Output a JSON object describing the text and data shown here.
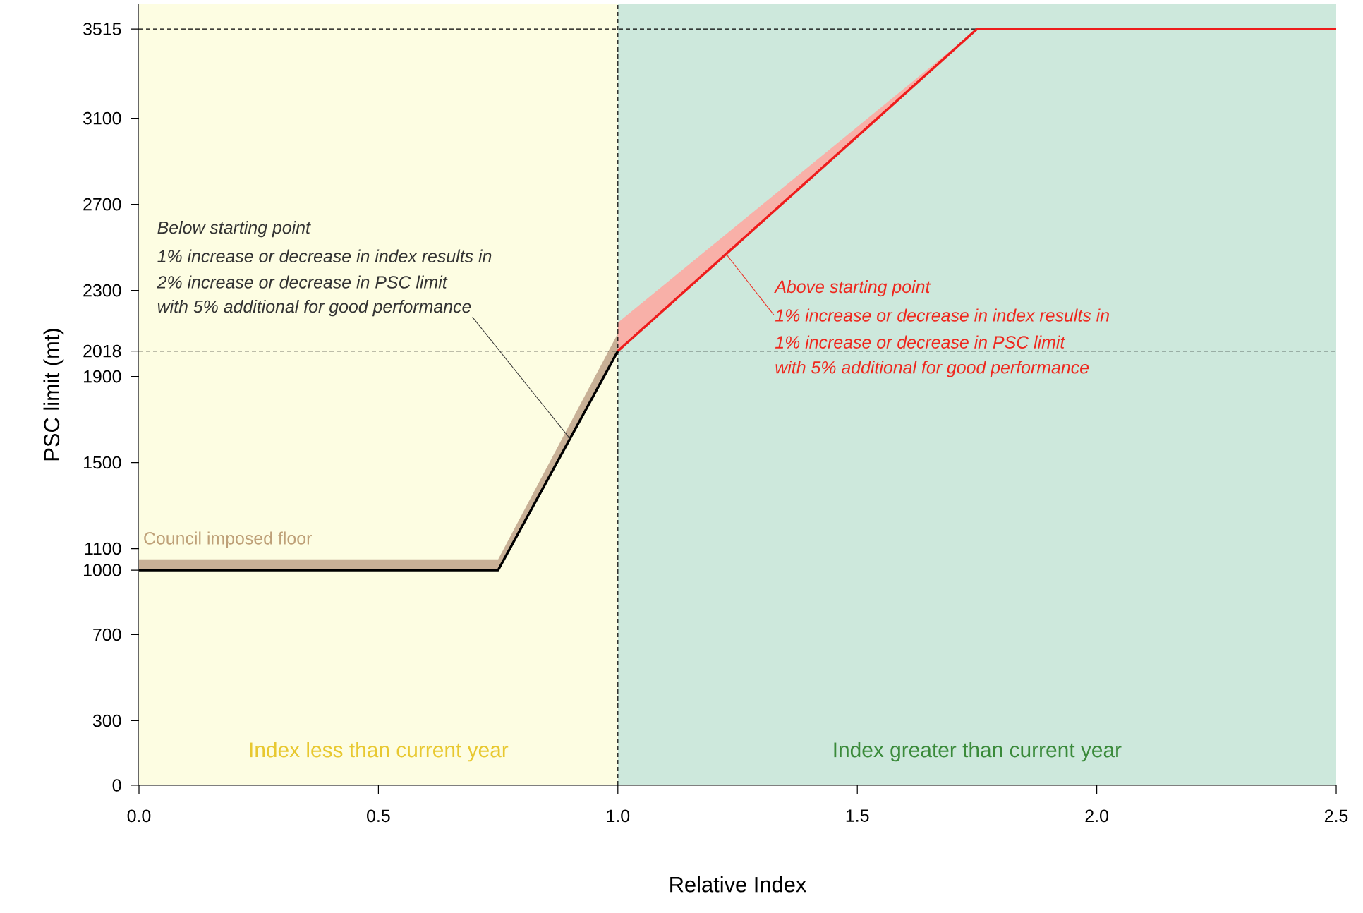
{
  "chart_data": {
    "type": "line",
    "xlabel": "Relative Index",
    "ylabel": "PSC limit (mt)",
    "xlim": [
      0,
      2.5
    ],
    "ylim": [
      0,
      3630
    ],
    "xticks": [
      {
        "value": 0,
        "label": "0.0"
      },
      0.5,
      {
        "value": 1,
        "label": "1.0"
      },
      1.5,
      {
        "value": 2,
        "label": "2.0"
      },
      2.5
    ],
    "yticks": [
      0,
      300,
      700,
      1000,
      1100,
      1500,
      1900,
      2018,
      2300,
      2700,
      3100,
      3515
    ],
    "series": [
      {
        "color": "#000000",
        "x": [
          0,
          0.75,
          1.0
        ],
        "values": [
          1000,
          1000,
          2018
        ],
        "lower": [
          1000,
          1000,
          2018
        ],
        "upper": [
          1050,
          1050,
          2100
        ]
      },
      {
        "color": "#ee1c1c",
        "x": [
          1.0,
          1.75,
          2.5
        ],
        "values": [
          2018,
          3515,
          3515
        ],
        "lower": [
          2018,
          3515,
          3515
        ],
        "upper": [
          2150,
          3515,
          3515
        ]
      }
    ],
    "bands": [
      {
        "axis": "x",
        "from": 0,
        "to": 1.0,
        "label": "Index less than current year",
        "color": "#fdfde2"
      },
      {
        "axis": "x",
        "from": 1.0,
        "to": 2.5,
        "label": "Index greater than current year",
        "color": "#cde8dc"
      }
    ],
    "ref_lines": [
      {
        "axis": "y",
        "value": 3515,
        "line_style": "dashed"
      },
      {
        "axis": "y",
        "value": 2018,
        "line_style": "dashed"
      },
      {
        "axis": "x",
        "value": 1.0,
        "line_style": "dashed"
      }
    ],
    "annotations": [
      "Council imposed floor",
      "*Below starting point*",
      "*1% increase or decrease in index results in*",
      "*2% increase or decrease in PSC limit*",
      {
        "text": "*with 5% additional for good performance*",
        "x": 0.9,
        "y": 1611
      },
      "*Above starting point*",
      {
        "text": "*1% increase or decrease in index results in*",
        "x": 1.226,
        "y": 2469
      },
      "*1% increase or decrease in PSC limit*",
      "*with 5% additional for good performance*"
    ],
    "grid": false,
    "marker": "none",
    "line_style": "solid"
  }
}
